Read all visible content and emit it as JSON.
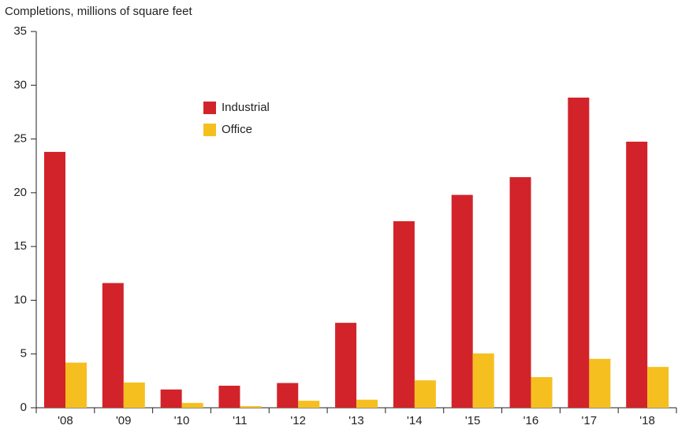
{
  "chart_data": {
    "type": "bar",
    "title": "Completions, millions of square feet",
    "categories": [
      "'08",
      "'09",
      "'10",
      "'11",
      "'12",
      "'13",
      "'14",
      "'15",
      "'16",
      "'17",
      "'18"
    ],
    "series": [
      {
        "name": "Industrial",
        "color": "#d2232a",
        "values": [
          23.8,
          11.6,
          1.7,
          2.05,
          2.3,
          7.9,
          17.35,
          19.8,
          21.45,
          28.85,
          24.75
        ]
      },
      {
        "name": "Office",
        "color": "#f5c01f",
        "values": [
          4.2,
          2.35,
          0.45,
          0.15,
          0.65,
          0.75,
          2.55,
          5.05,
          2.85,
          4.55,
          3.8
        ]
      }
    ],
    "ylim": [
      0,
      35
    ],
    "yticks": [
      0,
      5,
      10,
      15,
      20,
      25,
      30,
      35
    ],
    "grid": false
  }
}
